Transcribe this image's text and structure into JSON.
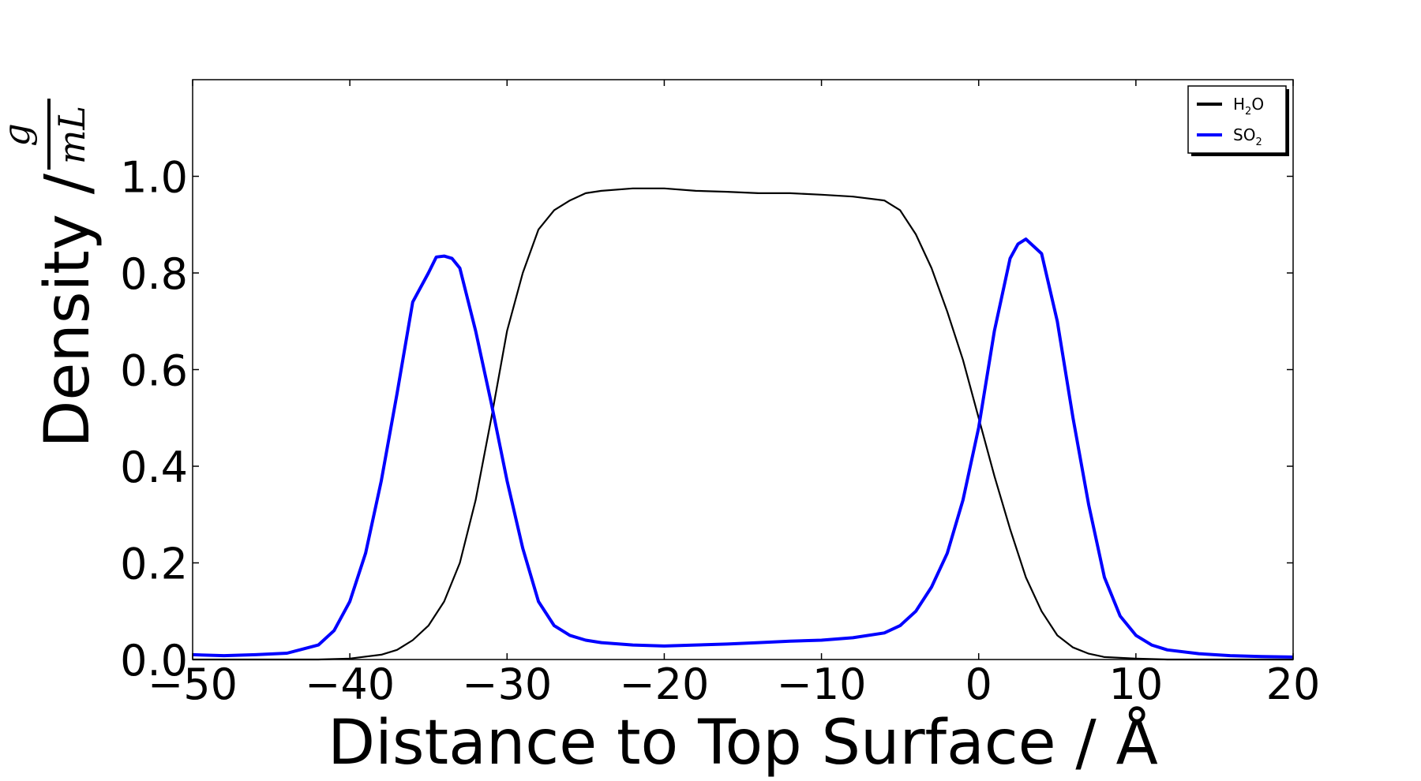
{
  "chart_data": {
    "type": "line",
    "xlabel": "Distance to Top Surface / Å",
    "ylabel": "Density / ",
    "ylabel_fraction": {
      "numerator": "g",
      "denominator": "mL"
    },
    "xlim": [
      -50,
      20
    ],
    "ylim": [
      0,
      1.2
    ],
    "xticks": [
      -50,
      -40,
      -30,
      -20,
      -10,
      0,
      10,
      20
    ],
    "xtick_labels": [
      "−50",
      "−40",
      "−30",
      "−20",
      "−10",
      "0",
      "10",
      "20"
    ],
    "yticks": [
      0,
      0.2,
      0.4,
      0.6,
      0.8,
      1.0
    ],
    "ytick_labels": [
      "0.0",
      "0.2",
      "0.4",
      "0.6",
      "0.8",
      "1.0"
    ],
    "grid": false,
    "legend": {
      "placement": "top-right",
      "entries": [
        {
          "label_main": "H",
          "label_sub": "2",
          "label_tail": "O"
        },
        {
          "label_main": "SO",
          "label_sub": "2",
          "label_tail": ""
        }
      ]
    },
    "series": [
      {
        "name": "H2O",
        "color": "#000000",
        "x": [
          -50,
          -45,
          -42,
          -40,
          -38,
          -37,
          -36,
          -35,
          -34,
          -33,
          -32,
          -31,
          -30,
          -29,
          -28,
          -27,
          -26,
          -25,
          -24,
          -22,
          -20,
          -18,
          -16,
          -14,
          -12,
          -10,
          -8,
          -6,
          -5,
          -4,
          -3,
          -2,
          -1,
          0,
          1,
          2,
          3,
          4,
          5,
          6,
          7,
          8,
          10,
          12,
          15,
          20
        ],
        "y": [
          0.0,
          0.0,
          0.0,
          0.002,
          0.01,
          0.02,
          0.04,
          0.07,
          0.12,
          0.2,
          0.33,
          0.5,
          0.68,
          0.8,
          0.89,
          0.93,
          0.95,
          0.965,
          0.97,
          0.975,
          0.975,
          0.97,
          0.968,
          0.965,
          0.965,
          0.962,
          0.958,
          0.95,
          0.93,
          0.88,
          0.81,
          0.72,
          0.62,
          0.5,
          0.38,
          0.27,
          0.17,
          0.1,
          0.05,
          0.025,
          0.012,
          0.005,
          0.002,
          0.0,
          0.0,
          0.0
        ]
      },
      {
        "name": "SO2",
        "color": "#0000ff",
        "x": [
          -50,
          -48,
          -46,
          -44,
          -42,
          -41,
          -40,
          -39,
          -38,
          -37,
          -36,
          -35,
          -34.5,
          -34,
          -33.5,
          -33,
          -32,
          -31,
          -30,
          -29,
          -28,
          -27,
          -26,
          -25,
          -24,
          -22,
          -20,
          -18,
          -16,
          -14,
          -12,
          -10,
          -8,
          -6,
          -5,
          -4,
          -3,
          -2,
          -1,
          0,
          1,
          2,
          2.5,
          3,
          4,
          5,
          6,
          7,
          8,
          9,
          10,
          11,
          12,
          14,
          16,
          18,
          20
        ],
        "y": [
          0.01,
          0.008,
          0.01,
          0.013,
          0.03,
          0.06,
          0.12,
          0.22,
          0.37,
          0.55,
          0.74,
          0.8,
          0.833,
          0.835,
          0.83,
          0.81,
          0.68,
          0.53,
          0.37,
          0.23,
          0.12,
          0.07,
          0.05,
          0.04,
          0.035,
          0.03,
          0.028,
          0.03,
          0.032,
          0.035,
          0.038,
          0.04,
          0.045,
          0.055,
          0.07,
          0.1,
          0.15,
          0.22,
          0.33,
          0.48,
          0.68,
          0.83,
          0.86,
          0.87,
          0.84,
          0.7,
          0.5,
          0.32,
          0.17,
          0.09,
          0.05,
          0.03,
          0.02,
          0.012,
          0.008,
          0.006,
          0.005
        ]
      }
    ]
  }
}
